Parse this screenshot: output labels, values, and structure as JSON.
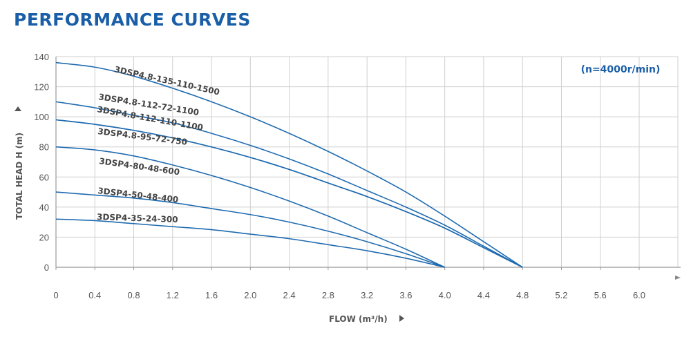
{
  "header": {
    "title": "PERFORMANCE CURVES"
  },
  "chart_data": {
    "type": "line",
    "xlabel": "FLOW (m³/h)",
    "ylabel": "TOTAL HEAD H (m)",
    "annotation": "(n=4000r/min)",
    "xlim": [
      0,
      6.4
    ],
    "ylim": [
      0,
      140
    ],
    "x_ticks": [
      "0",
      "0.4",
      "0.8",
      "1.2",
      "1.6",
      "2.0",
      "2.4",
      "2.8",
      "3.2",
      "3.6",
      "4.0",
      "4.4",
      "4.8",
      "5.2",
      "5.6",
      "6.0"
    ],
    "y_ticks": [
      "0",
      "20",
      "40",
      "60",
      "80",
      "100",
      "120",
      "140"
    ],
    "grid": true,
    "series": [
      {
        "name": "3DSP4.8-135-110-1500",
        "x": [
          0,
          0.4,
          0.8,
          1.2,
          1.6,
          2.0,
          2.4,
          2.8,
          3.2,
          3.6,
          4.0,
          4.4,
          4.8
        ],
        "y": [
          136,
          133,
          127,
          119,
          110,
          100,
          89,
          77,
          64,
          50,
          34,
          17,
          0
        ]
      },
      {
        "name": "3DSP4.8-112-72-1100",
        "x": [
          0,
          0.4,
          0.8,
          1.2,
          1.6,
          2.0,
          2.4,
          2.8,
          3.2,
          3.6,
          4.0,
          4.4,
          4.8
        ],
        "y": [
          110,
          106,
          101,
          96,
          89,
          81,
          72,
          62,
          51,
          40,
          28,
          14,
          0
        ]
      },
      {
        "name": "3DSP4.8-112-110-1100",
        "x": [
          0,
          0.4,
          0.8,
          1.2,
          1.6,
          2.0,
          2.4,
          2.8,
          3.2,
          3.6,
          4.0,
          4.4,
          4.8
        ],
        "y": [
          98,
          95,
          91,
          86,
          80,
          73,
          65,
          56,
          47,
          37,
          26,
          13,
          0
        ]
      },
      {
        "name": "3DSP4.8-95-72-750",
        "x": [
          0,
          0.4,
          0.8,
          1.2,
          1.6,
          2.0,
          2.4,
          2.8,
          3.2,
          3.6,
          4.0,
          4.4,
          4.8
        ],
        "y": [
          98,
          95,
          91,
          86,
          80,
          73,
          65,
          56,
          47,
          37,
          26,
          13,
          0
        ]
      },
      {
        "name": "3DSP4-80-48-600",
        "x": [
          0,
          0.4,
          0.8,
          1.2,
          1.6,
          2.0,
          2.4,
          2.8,
          3.2,
          3.6,
          4.0
        ],
        "y": [
          80,
          78,
          74,
          68,
          61,
          53,
          44,
          34,
          23,
          12,
          0
        ]
      },
      {
        "name": "3DSP4-50-48-400",
        "x": [
          0,
          0.4,
          0.8,
          1.2,
          1.6,
          2.0,
          2.4,
          2.8,
          3.2,
          3.6,
          4.0
        ],
        "y": [
          50,
          48,
          46,
          43,
          39,
          35,
          30,
          24,
          17,
          9,
          0
        ]
      },
      {
        "name": "3DSP4-35-24-300",
        "x": [
          0,
          0.4,
          0.8,
          1.2,
          1.6,
          2.0,
          2.4,
          2.8,
          3.2,
          3.6,
          4.0
        ],
        "y": [
          32,
          31,
          29,
          27,
          25,
          22,
          19,
          15,
          11,
          6,
          0
        ]
      }
    ],
    "colors": {
      "curve": "#1f6bb0",
      "grid": "#cfcfcf",
      "axis": "#999999",
      "title": "#1a5ea8"
    }
  }
}
